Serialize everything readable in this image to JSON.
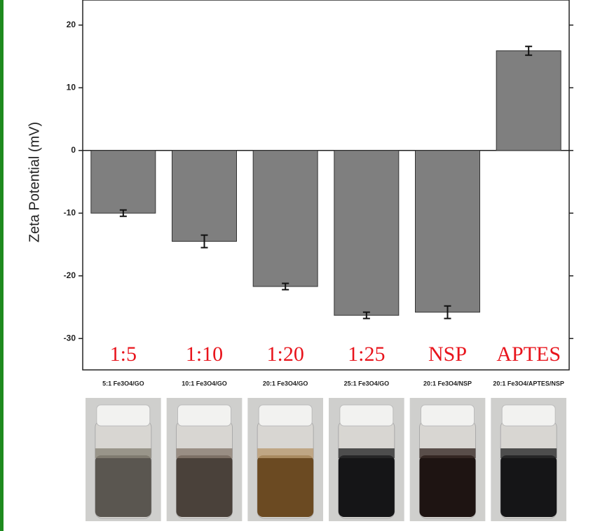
{
  "chart_data": {
    "type": "bar",
    "y_label": "Zeta Potential (mV)",
    "categories": [
      "5:1 Fe3O4/GO",
      "10:1 Fe3O4/GO",
      "20:1 Fe3O4/GO",
      "25:1 Fe3O4/GO",
      "20:1 Fe3O4/NSP",
      "20:1 Fe3O4/APTES/NSP"
    ],
    "annotations": [
      "1:5",
      "1:10",
      "1:20",
      "1:25",
      "NSP",
      "APTES"
    ],
    "values": [
      -10,
      -14.5,
      -21.7,
      -26.3,
      -25.8,
      15.9
    ],
    "errors": [
      0.5,
      1,
      0.5,
      0.5,
      1,
      0.7
    ],
    "color": "#7f7f7f",
    "annotation_color": "#e8141c",
    "ylim": [
      -35,
      24
    ],
    "yticks": [
      -30,
      -20,
      -10,
      0,
      10,
      20
    ]
  }
}
